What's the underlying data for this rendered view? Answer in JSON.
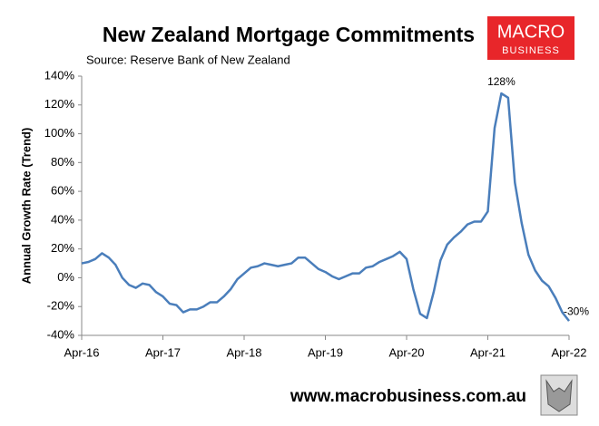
{
  "chart_data": {
    "type": "line",
    "title": "New Zealand Mortgage Commitments",
    "subtitle": "Source: Reserve Bank of New Zealand",
    "ylabel": "Annual Growth Rate (Trend)",
    "logo": [
      "MACRO",
      "BUSINESS"
    ],
    "footer": "www.macrobusiness.com.au",
    "categories": [
      "Apr-16",
      null,
      null,
      null,
      null,
      null,
      null,
      null,
      null,
      null,
      null,
      null,
      "Apr-17",
      null,
      null,
      null,
      null,
      null,
      null,
      null,
      null,
      null,
      null,
      null,
      "Apr-18",
      null,
      null,
      null,
      null,
      null,
      null,
      null,
      null,
      null,
      null,
      null,
      "Apr-19",
      null,
      null,
      null,
      null,
      null,
      null,
      null,
      null,
      null,
      null,
      null,
      "Apr-20",
      null,
      null,
      null,
      null,
      null,
      null,
      null,
      null,
      null,
      null,
      null,
      "Apr-21",
      null,
      null,
      null,
      null,
      null,
      null,
      null,
      null,
      null,
      null,
      null,
      "Apr-22"
    ],
    "series": [
      {
        "name": "Annual growth",
        "color": "#4a7ebb",
        "values": [
          10,
          11,
          13,
          17,
          14,
          9,
          0,
          -5,
          -7,
          -4,
          -5,
          -10,
          -13,
          -18,
          -19,
          -24,
          -22,
          -22,
          -20,
          -17,
          -17,
          -13,
          -8,
          -1,
          3,
          7,
          8,
          10,
          9,
          8,
          9,
          10,
          14,
          14,
          10,
          6,
          4,
          1,
          -1,
          1,
          3,
          3,
          7,
          8,
          11,
          13,
          15,
          18,
          13,
          -8,
          -25,
          -28,
          -10,
          12,
          23,
          28,
          32,
          37,
          39,
          39,
          46,
          104,
          128,
          125,
          66,
          38,
          16,
          5,
          -2,
          -6,
          -14,
          -24,
          -30
        ],
        "value_labels": [
          null,
          null,
          null,
          null,
          null,
          null,
          null,
          null,
          null,
          null,
          null,
          null,
          null,
          null,
          null,
          null,
          null,
          null,
          null,
          null,
          null,
          null,
          null,
          null,
          null,
          null,
          null,
          null,
          null,
          null,
          null,
          null,
          null,
          null,
          null,
          null,
          null,
          null,
          null,
          null,
          null,
          null,
          null,
          null,
          null,
          null,
          null,
          null,
          null,
          null,
          null,
          null,
          null,
          null,
          null,
          null,
          null,
          null,
          null,
          null,
          null,
          null,
          "128%",
          null,
          null,
          null,
          null,
          null,
          null,
          null,
          null,
          null,
          "-30%"
        ]
      }
    ],
    "ylim": [
      -40,
      140
    ],
    "yticks": [
      {
        "value": -40,
        "label": "-40%"
      },
      {
        "value": -20,
        "label": "-20%"
      },
      {
        "value": 0,
        "label": "0%"
      },
      {
        "value": 20,
        "label": "20%"
      },
      {
        "value": 40,
        "label": "40%"
      },
      {
        "value": 60,
        "label": "60%"
      },
      {
        "value": 80,
        "label": "80%"
      },
      {
        "value": 100,
        "label": "100%"
      },
      {
        "value": 120,
        "label": "120%"
      },
      {
        "value": 140,
        "label": "140%"
      }
    ],
    "grid": false
  }
}
